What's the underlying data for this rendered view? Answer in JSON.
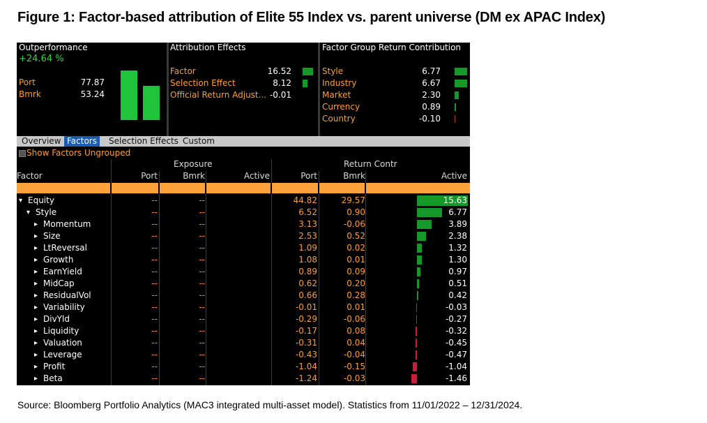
{
  "figure": {
    "title": "Figure 1: Factor-based attribution of Elite 55 Index vs. parent universe (DM ex APAC Index)",
    "source": "Source: Bloomberg Portfolio Analytics (MAC3 integrated multi-asset model). Statistics from 11/01/2022 – 12/31/2024."
  },
  "outperformance": {
    "title": "Outperformance",
    "value": "+24.64 %",
    "port_label": "Port",
    "port_value": "77.87",
    "port_num": 77.87,
    "bmrk_label": "Bmrk",
    "bmrk_value": "53.24",
    "bmrk_num": 53.24
  },
  "attribution": {
    "title": "Attribution Effects",
    "rows": [
      {
        "label": "Factor",
        "value": "16.52",
        "num": 16.52
      },
      {
        "label": "Selection Effect",
        "value": "8.12",
        "num": 8.12
      },
      {
        "label": "Official Return Adjust...",
        "value": "-0.01",
        "num": -0.01
      }
    ]
  },
  "factor_group": {
    "title": "Factor Group Return Contribution",
    "rows": [
      {
        "label": "Style",
        "value": "6.77",
        "num": 6.77
      },
      {
        "label": "Industry",
        "value": "6.67",
        "num": 6.67
      },
      {
        "label": "Market",
        "value": "2.30",
        "num": 2.3
      },
      {
        "label": "Currency",
        "value": "0.89",
        "num": 0.89
      },
      {
        "label": "Country",
        "value": "-0.10",
        "num": -0.1
      }
    ]
  },
  "tabs": [
    "Overview",
    "Factors",
    "Selection Effects",
    "Custom"
  ],
  "active_tab": "Factors",
  "toggle_label": "Show Factors Ungrouped",
  "table": {
    "group_exposure": "Exposure",
    "group_return": "Return Contr",
    "columns": [
      "Factor",
      "Port",
      "Bmrk",
      "Active",
      "Port",
      "Bmrk",
      "Active"
    ],
    "rows": [
      {
        "name": "Equity",
        "glyph": "▾",
        "exp_port": "--",
        "exp_bmrk": "--",
        "ret_port": "44.82",
        "ret_bmrk": "29.57",
        "ret_active": "15.63",
        "active_num": 15.63
      },
      {
        "name": "Style",
        "glyph": "▾",
        "exp_port": "--",
        "exp_bmrk": "--",
        "ret_port": "6.52",
        "ret_bmrk": "0.90",
        "ret_active": "6.77",
        "active_num": 6.77
      },
      {
        "name": "Momentum",
        "glyph": "▸",
        "exp_port": "--",
        "exp_bmrk": "--",
        "ret_port": "3.13",
        "ret_bmrk": "-0.06",
        "ret_active": "3.89",
        "active_num": 3.89
      },
      {
        "name": "Size",
        "glyph": "▸",
        "exp_port": "--",
        "exp_bmrk": "--",
        "ret_port": "2.53",
        "ret_bmrk": "0.52",
        "ret_active": "2.38",
        "active_num": 2.38
      },
      {
        "name": "LtReversal",
        "glyph": "▸",
        "exp_port": "--",
        "exp_bmrk": "--",
        "ret_port": "1.09",
        "ret_bmrk": "0.02",
        "ret_active": "1.32",
        "active_num": 1.32
      },
      {
        "name": "Growth",
        "glyph": "▸",
        "exp_port": "--",
        "exp_bmrk": "--",
        "ret_port": "1.08",
        "ret_bmrk": "0.01",
        "ret_active": "1.30",
        "active_num": 1.3
      },
      {
        "name": "EarnYield",
        "glyph": "▸",
        "exp_port": "--",
        "exp_bmrk": "--",
        "ret_port": "0.89",
        "ret_bmrk": "0.09",
        "ret_active": "0.97",
        "active_num": 0.97
      },
      {
        "name": "MidCap",
        "glyph": "▸",
        "exp_port": "--",
        "exp_bmrk": "--",
        "ret_port": "0.62",
        "ret_bmrk": "0.20",
        "ret_active": "0.51",
        "active_num": 0.51
      },
      {
        "name": "ResidualVol",
        "glyph": "▸",
        "exp_port": "--",
        "exp_bmrk": "--",
        "ret_port": "0.66",
        "ret_bmrk": "0.28",
        "ret_active": "0.42",
        "active_num": 0.42
      },
      {
        "name": "Variability",
        "glyph": "▸",
        "exp_port": "--",
        "exp_bmrk": "--",
        "ret_port": "-0.01",
        "ret_bmrk": "0.01",
        "ret_active": "-0.03",
        "active_num": -0.03
      },
      {
        "name": "DivYld",
        "glyph": "▸",
        "exp_port": "--",
        "exp_bmrk": "--",
        "ret_port": "-0.29",
        "ret_bmrk": "-0.06",
        "ret_active": "-0.27",
        "active_num": -0.27
      },
      {
        "name": "Liquidity",
        "glyph": "▸",
        "exp_port": "--",
        "exp_bmrk": "--",
        "ret_port": "-0.17",
        "ret_bmrk": "0.08",
        "ret_active": "-0.32",
        "active_num": -0.32
      },
      {
        "name": "Valuation",
        "glyph": "▸",
        "exp_port": "--",
        "exp_bmrk": "--",
        "ret_port": "-0.31",
        "ret_bmrk": "0.04",
        "ret_active": "-0.45",
        "active_num": -0.45
      },
      {
        "name": "Leverage",
        "glyph": "▸",
        "exp_port": "--",
        "exp_bmrk": "--",
        "ret_port": "-0.43",
        "ret_bmrk": "-0.04",
        "ret_active": "-0.47",
        "active_num": -0.47
      },
      {
        "name": "Profit",
        "glyph": "▸",
        "exp_port": "--",
        "exp_bmrk": "--",
        "ret_port": "-1.04",
        "ret_bmrk": "-0.15",
        "ret_active": "-1.04",
        "active_num": -1.04
      },
      {
        "name": "Beta",
        "glyph": "▸",
        "exp_port": "--",
        "exp_bmrk": "--",
        "ret_port": "-1.24",
        "ret_bmrk": "-0.03",
        "ret_active": "-1.46",
        "active_num": -1.46
      }
    ]
  },
  "colors": {
    "positive_bar": "#159a2a",
    "negative_bar": "#c81e3a",
    "orange_text": "#ff9f2e",
    "header_orange": "#ffa23a",
    "active_tab": "#1d5cb0"
  }
}
